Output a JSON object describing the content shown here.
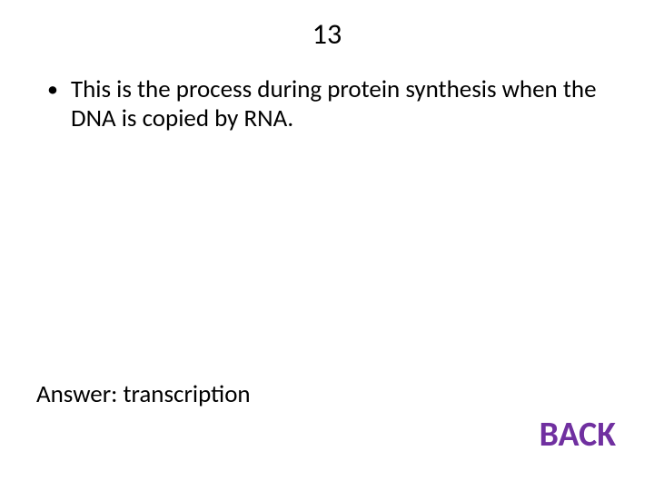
{
  "slide": {
    "title": "13",
    "bullet_text": "This is the process during protein synthesis when the DNA is copied by RNA.",
    "answer_label": "Answer: transcription",
    "back_label": "BACK"
  },
  "styles": {
    "title_fontsize": 32,
    "body_fontsize": 27,
    "back_fontsize": 38,
    "text_color": "#000000",
    "back_color": "#7030a0",
    "background_color": "#ffffff"
  }
}
